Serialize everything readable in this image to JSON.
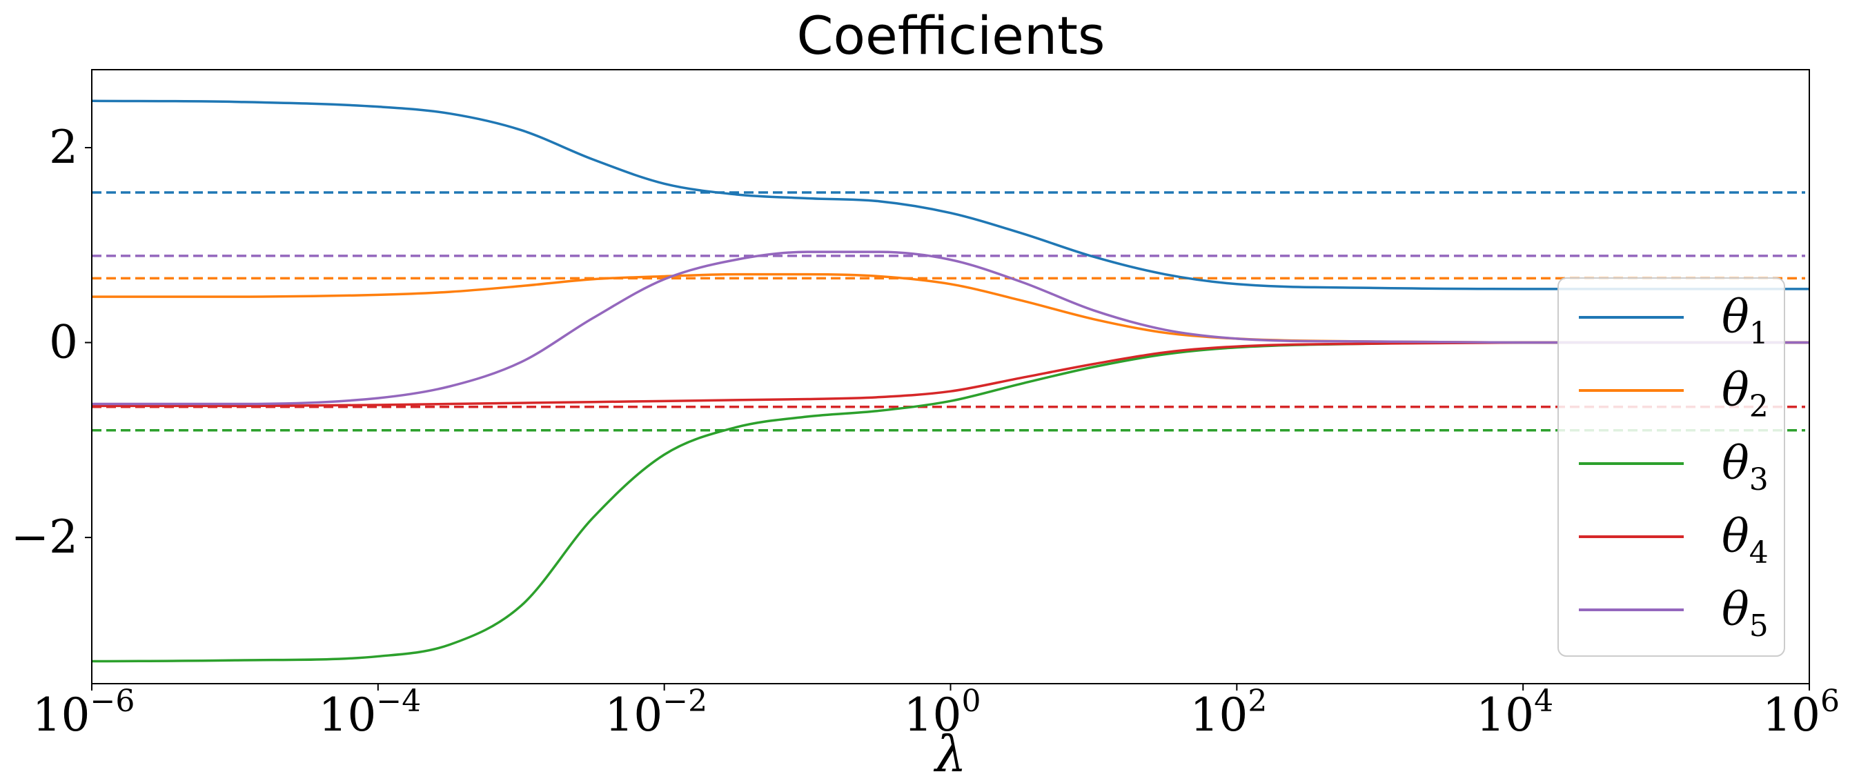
{
  "chart_data": {
    "type": "line",
    "title": "Coefficients",
    "xlabel": "λ",
    "ylabel": "",
    "xscale": "log",
    "xlim": [
      1e-06,
      1000000.0
    ],
    "ylim": [
      -3.5,
      2.8
    ],
    "x_ticks": [
      {
        "base": "10",
        "exp": "−6",
        "value": 1e-06
      },
      {
        "base": "10",
        "exp": "−4",
        "value": 0.0001
      },
      {
        "base": "10",
        "exp": "−2",
        "value": 0.01
      },
      {
        "base": "10",
        "exp": "0",
        "value": 1
      },
      {
        "base": "10",
        "exp": "2",
        "value": 100
      },
      {
        "base": "10",
        "exp": "4",
        "value": 10000
      },
      {
        "base": "10",
        "exp": "6",
        "value": 1000000
      }
    ],
    "y_ticks": [
      {
        "label": "2",
        "value": 2
      },
      {
        "label": "0",
        "value": 0
      },
      {
        "label": "−2",
        "value": -2
      }
    ],
    "grid": false,
    "legend_position": "right",
    "x_log10": [
      -6,
      -5,
      -4,
      -3.5,
      -3,
      -2.5,
      -2,
      -1.5,
      -1,
      -0.5,
      0,
      0.5,
      1,
      1.5,
      2,
      3,
      4,
      5,
      6
    ],
    "series": [
      {
        "name": "θ",
        "sub": "1",
        "color": "#1f77b4",
        "values": [
          2.48,
          2.47,
          2.42,
          2.35,
          2.18,
          1.88,
          1.63,
          1.52,
          1.48,
          1.45,
          1.33,
          1.12,
          0.88,
          0.7,
          0.6,
          0.56,
          0.55,
          0.55,
          0.55
        ],
        "reference": 1.54
      },
      {
        "name": "θ",
        "sub": "2",
        "color": "#ff7f0e",
        "values": [
          0.47,
          0.47,
          0.49,
          0.52,
          0.58,
          0.65,
          0.68,
          0.7,
          0.7,
          0.68,
          0.6,
          0.43,
          0.24,
          0.1,
          0.04,
          0.01,
          0.0,
          0.0,
          0.0
        ],
        "reference": 0.66
      },
      {
        "name": "θ",
        "sub": "3",
        "color": "#2ca02c",
        "values": [
          -3.27,
          -3.26,
          -3.22,
          -3.1,
          -2.7,
          -1.8,
          -1.15,
          -0.87,
          -0.76,
          -0.7,
          -0.6,
          -0.42,
          -0.25,
          -0.12,
          -0.05,
          -0.01,
          0.0,
          0.0,
          0.0
        ],
        "reference": -0.9
      },
      {
        "name": "θ",
        "sub": "4",
        "color": "#d62728",
        "values": [
          -0.65,
          -0.65,
          -0.64,
          -0.63,
          -0.62,
          -0.61,
          -0.6,
          -0.59,
          -0.58,
          -0.56,
          -0.5,
          -0.36,
          -0.22,
          -0.1,
          -0.04,
          -0.01,
          0.0,
          0.0,
          0.0
        ],
        "reference": -0.66
      },
      {
        "name": "θ",
        "sub": "5",
        "color": "#9467bd",
        "values": [
          -0.63,
          -0.63,
          -0.57,
          -0.45,
          -0.2,
          0.25,
          0.65,
          0.85,
          0.93,
          0.93,
          0.85,
          0.62,
          0.33,
          0.13,
          0.04,
          0.01,
          0.0,
          0.0,
          0.0
        ],
        "reference": 0.89
      }
    ],
    "reference_style": "dashed"
  }
}
